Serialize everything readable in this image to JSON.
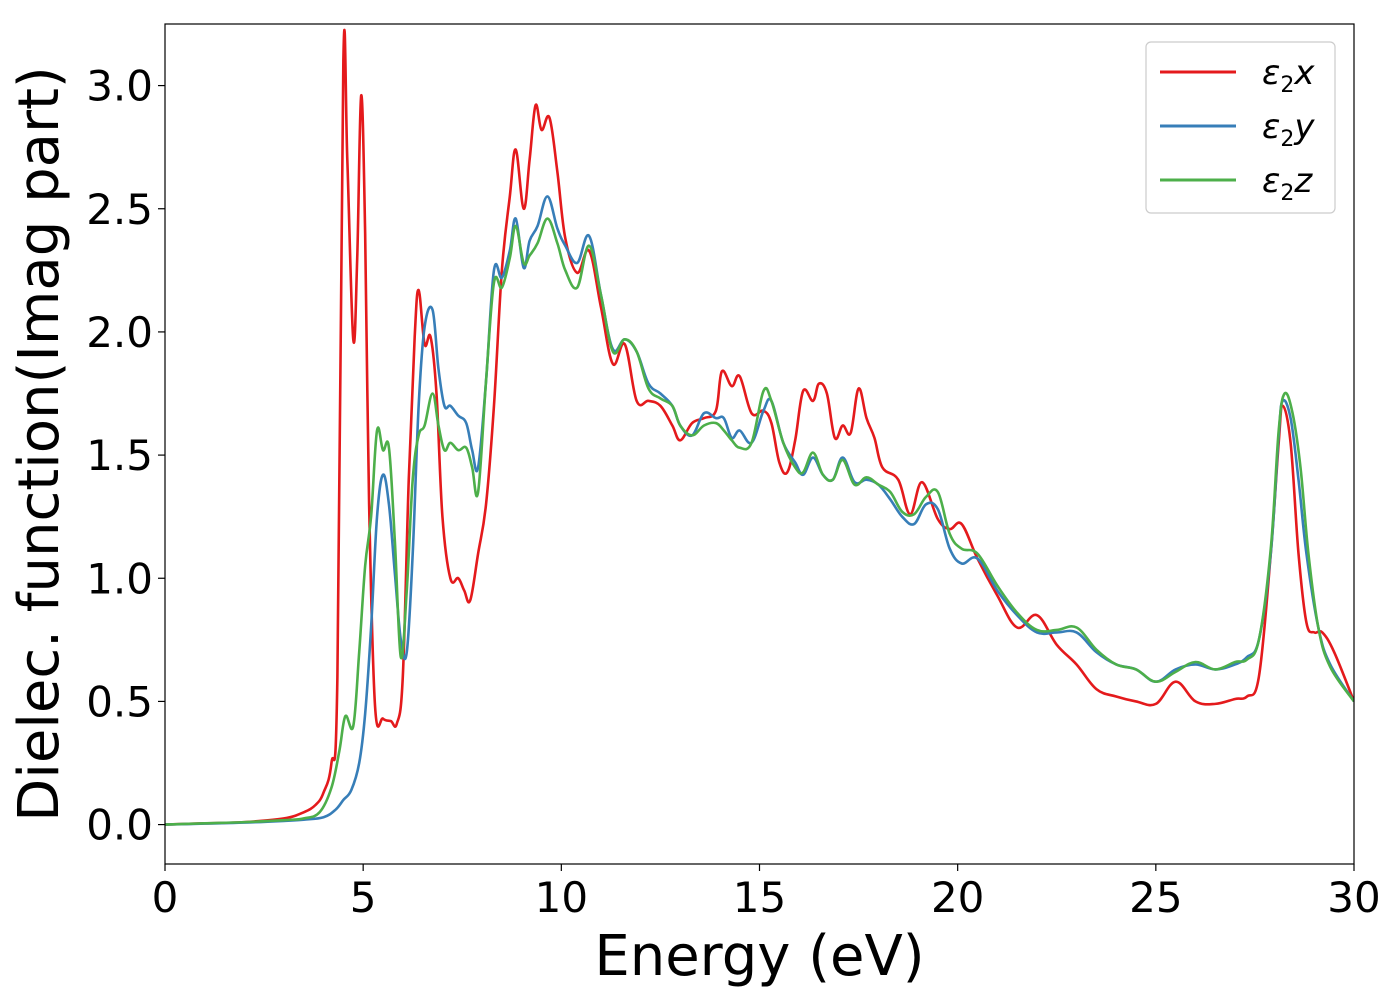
{
  "chart_data": {
    "type": "line",
    "title": "",
    "xlabel": "Energy (eV)",
    "ylabel": "Dielec. function(Imag part)",
    "xlim": [
      0,
      30
    ],
    "ylim": [
      -0.16,
      3.25
    ],
    "xticks": [
      0,
      5,
      10,
      15,
      20,
      25,
      30
    ],
    "xtick_labels": [
      "0",
      "5",
      "10",
      "15",
      "20",
      "25",
      "30"
    ],
    "yticks": [
      0.0,
      0.5,
      1.0,
      1.5,
      2.0,
      2.5,
      3.0
    ],
    "ytick_labels": [
      "0.0",
      "0.5",
      "1.0",
      "1.5",
      "2.0",
      "2.5",
      "3.0"
    ],
    "grid": false,
    "legend_position": "top-right",
    "series": [
      {
        "name": "ε2x",
        "label_base": "ε",
        "label_sub": "2",
        "label_var": "x",
        "color": "#e41a1c",
        "x": [
          0,
          1,
          2,
          3,
          3.5,
          3.8,
          4.0,
          4.2,
          4.35,
          4.5,
          4.6,
          4.75,
          4.85,
          4.95,
          5.05,
          5.15,
          5.3,
          5.5,
          5.7,
          5.85,
          6.0,
          6.15,
          6.3,
          6.4,
          6.55,
          6.7,
          6.85,
          7.0,
          7.2,
          7.4,
          7.55,
          7.7,
          7.9,
          8.1,
          8.3,
          8.5,
          8.7,
          8.85,
          9.05,
          9.2,
          9.35,
          9.5,
          9.7,
          9.9,
          10.1,
          10.4,
          10.7,
          11.0,
          11.3,
          11.6,
          11.9,
          12.2,
          12.5,
          12.8,
          13.0,
          13.3,
          13.6,
          13.9,
          14.05,
          14.3,
          14.5,
          14.8,
          15.1,
          15.3,
          15.5,
          15.7,
          15.9,
          16.1,
          16.35,
          16.5,
          16.7,
          16.9,
          17.1,
          17.3,
          17.5,
          17.7,
          17.9,
          18.1,
          18.5,
          18.8,
          19.1,
          19.5,
          19.8,
          20.1,
          20.5,
          21.0,
          21.5,
          22.0,
          22.5,
          23.0,
          23.5,
          24.0,
          24.5,
          25.0,
          25.5,
          26.0,
          26.5,
          27.0,
          27.3,
          27.6,
          27.9,
          28.1,
          28.2,
          28.4,
          28.6,
          28.8,
          29.0,
          29.2,
          29.5,
          30.0
        ],
        "values": [
          0.0,
          0.005,
          0.01,
          0.025,
          0.05,
          0.08,
          0.13,
          0.25,
          0.6,
          3.1,
          2.7,
          1.97,
          2.3,
          2.96,
          2.4,
          1.3,
          0.48,
          0.43,
          0.42,
          0.41,
          0.6,
          1.4,
          1.98,
          2.17,
          1.95,
          1.98,
          1.75,
          1.25,
          1.0,
          1.0,
          0.95,
          0.91,
          1.1,
          1.3,
          1.7,
          2.25,
          2.55,
          2.74,
          2.5,
          2.7,
          2.92,
          2.82,
          2.87,
          2.65,
          2.38,
          2.24,
          2.33,
          2.1,
          1.87,
          1.95,
          1.72,
          1.72,
          1.7,
          1.62,
          1.56,
          1.63,
          1.65,
          1.68,
          1.84,
          1.78,
          1.82,
          1.67,
          1.68,
          1.63,
          1.47,
          1.43,
          1.56,
          1.76,
          1.72,
          1.79,
          1.75,
          1.57,
          1.62,
          1.59,
          1.77,
          1.65,
          1.57,
          1.45,
          1.4,
          1.26,
          1.39,
          1.24,
          1.2,
          1.22,
          1.08,
          0.93,
          0.8,
          0.85,
          0.73,
          0.65,
          0.55,
          0.52,
          0.5,
          0.49,
          0.58,
          0.5,
          0.49,
          0.51,
          0.52,
          0.6,
          1.1,
          1.55,
          1.7,
          1.55,
          1.1,
          0.82,
          0.78,
          0.78,
          0.7,
          0.5
        ]
      },
      {
        "name": "ε2y",
        "label_base": "ε",
        "label_sub": "2",
        "label_var": "y",
        "color": "#377eb8",
        "x": [
          0,
          1,
          2,
          3,
          3.5,
          4.0,
          4.3,
          4.5,
          4.7,
          4.9,
          5.05,
          5.2,
          5.35,
          5.5,
          5.65,
          5.8,
          5.95,
          6.1,
          6.25,
          6.4,
          6.55,
          6.75,
          6.9,
          7.05,
          7.2,
          7.4,
          7.6,
          7.75,
          7.9,
          8.1,
          8.3,
          8.5,
          8.7,
          8.85,
          9.05,
          9.2,
          9.4,
          9.65,
          9.9,
          10.1,
          10.4,
          10.7,
          11.0,
          11.3,
          11.6,
          11.9,
          12.2,
          12.5,
          12.8,
          13.0,
          13.3,
          13.6,
          13.9,
          14.1,
          14.3,
          14.5,
          14.8,
          15.1,
          15.3,
          15.6,
          15.9,
          16.1,
          16.35,
          16.6,
          16.85,
          17.1,
          17.4,
          17.7,
          18.0,
          18.3,
          18.6,
          18.9,
          19.2,
          19.5,
          19.8,
          20.1,
          20.5,
          21.0,
          21.5,
          22.0,
          22.5,
          23.0,
          23.5,
          24.0,
          24.5,
          25.0,
          25.5,
          26.0,
          26.5,
          27.0,
          27.3,
          27.6,
          27.9,
          28.1,
          28.2,
          28.4,
          28.6,
          28.8,
          29.1,
          29.4,
          30.0
        ],
        "values": [
          0.0,
          0.004,
          0.008,
          0.015,
          0.02,
          0.03,
          0.06,
          0.1,
          0.14,
          0.25,
          0.45,
          0.8,
          1.25,
          1.42,
          1.3,
          1.02,
          0.75,
          0.7,
          1.1,
          1.7,
          2.02,
          2.09,
          1.85,
          1.7,
          1.7,
          1.66,
          1.63,
          1.52,
          1.45,
          1.8,
          2.25,
          2.22,
          2.33,
          2.46,
          2.26,
          2.37,
          2.43,
          2.55,
          2.42,
          2.35,
          2.28,
          2.39,
          2.15,
          1.93,
          1.97,
          1.92,
          1.79,
          1.75,
          1.7,
          1.62,
          1.58,
          1.67,
          1.65,
          1.65,
          1.57,
          1.6,
          1.55,
          1.68,
          1.72,
          1.55,
          1.47,
          1.42,
          1.49,
          1.42,
          1.4,
          1.49,
          1.39,
          1.4,
          1.38,
          1.32,
          1.25,
          1.22,
          1.3,
          1.28,
          1.12,
          1.06,
          1.08,
          0.95,
          0.85,
          0.78,
          0.78,
          0.78,
          0.7,
          0.65,
          0.63,
          0.58,
          0.63,
          0.65,
          0.63,
          0.65,
          0.68,
          0.75,
          1.1,
          1.58,
          1.72,
          1.65,
          1.4,
          1.1,
          0.8,
          0.65,
          0.5
        ]
      },
      {
        "name": "ε2z",
        "label_base": "ε",
        "label_sub": "2",
        "label_var": "z",
        "color": "#4daf4a",
        "x": [
          0,
          1,
          2,
          3,
          3.5,
          3.9,
          4.2,
          4.4,
          4.55,
          4.75,
          4.9,
          5.05,
          5.2,
          5.35,
          5.5,
          5.65,
          5.8,
          5.95,
          6.1,
          6.25,
          6.4,
          6.55,
          6.75,
          6.9,
          7.05,
          7.2,
          7.4,
          7.6,
          7.75,
          7.9,
          8.1,
          8.3,
          8.5,
          8.7,
          8.85,
          9.05,
          9.2,
          9.4,
          9.65,
          9.9,
          10.1,
          10.4,
          10.7,
          11.0,
          11.3,
          11.6,
          11.9,
          12.2,
          12.5,
          12.8,
          13.0,
          13.3,
          13.6,
          13.9,
          14.1,
          14.3,
          14.5,
          14.8,
          15.1,
          15.3,
          15.6,
          15.9,
          16.1,
          16.35,
          16.6,
          16.85,
          17.1,
          17.4,
          17.7,
          18.0,
          18.3,
          18.6,
          18.9,
          19.2,
          19.5,
          19.8,
          20.1,
          20.5,
          21.0,
          21.5,
          22.0,
          22.5,
          23.0,
          23.5,
          24.0,
          24.5,
          25.0,
          25.5,
          26.0,
          26.5,
          27.0,
          27.3,
          27.6,
          27.9,
          28.1,
          28.25,
          28.45,
          28.65,
          28.85,
          29.1,
          29.4,
          30.0
        ],
        "values": [
          0.0,
          0.005,
          0.01,
          0.018,
          0.025,
          0.05,
          0.15,
          0.3,
          0.44,
          0.4,
          0.7,
          1.05,
          1.25,
          1.6,
          1.52,
          1.53,
          1.15,
          0.68,
          0.95,
          1.4,
          1.58,
          1.62,
          1.75,
          1.62,
          1.52,
          1.55,
          1.52,
          1.53,
          1.45,
          1.35,
          1.8,
          2.2,
          2.18,
          2.3,
          2.43,
          2.28,
          2.31,
          2.36,
          2.46,
          2.36,
          2.25,
          2.18,
          2.35,
          2.15,
          1.92,
          1.97,
          1.92,
          1.77,
          1.73,
          1.7,
          1.62,
          1.58,
          1.62,
          1.63,
          1.6,
          1.56,
          1.53,
          1.55,
          1.76,
          1.72,
          1.55,
          1.45,
          1.43,
          1.51,
          1.42,
          1.4,
          1.48,
          1.38,
          1.41,
          1.38,
          1.35,
          1.27,
          1.26,
          1.33,
          1.35,
          1.18,
          1.12,
          1.1,
          0.97,
          0.86,
          0.79,
          0.79,
          0.8,
          0.71,
          0.65,
          0.63,
          0.58,
          0.62,
          0.66,
          0.63,
          0.66,
          0.67,
          0.75,
          1.12,
          1.6,
          1.75,
          1.67,
          1.45,
          1.1,
          0.8,
          0.64,
          0.5
        ]
      }
    ]
  }
}
